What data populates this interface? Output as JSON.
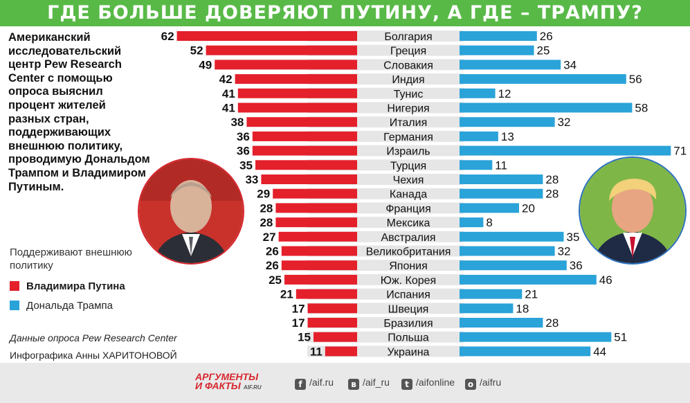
{
  "header": {
    "title": "ГДЕ БОЛЬШЕ ДОВЕРЯЮТ ПУТИНУ, А ГДЕ – ТРАМПУ?"
  },
  "intro": "Американский исследовательский центр Pew Research Center с помощью опроса выяснил процент жителей разных стран, поддерживающих внешнюю политику, проводимую Дональдом Трампом и Владимиром Путиным.",
  "legend": {
    "title": "Поддерживают внешнюю политику",
    "putin": "Владимира Путина",
    "trump": "Дональда Трампа"
  },
  "source": "Данные опроса Pew Research Center",
  "credit": "Инфографика Анны ХАРИТОНОВОЙ",
  "footer": {
    "logo_line1": "АРГУМЕНТЫ",
    "logo_line2": "И ФАКТЫ",
    "logo_domain": "AIF.RU",
    "links": [
      {
        "icon": "f",
        "label": "/aif.ru"
      },
      {
        "icon": "в",
        "label": "/aif_ru"
      },
      {
        "icon": "t",
        "label": "/aifonline"
      },
      {
        "icon": "о",
        "label": "/aifru"
      }
    ]
  },
  "colors": {
    "putin": "#e4202b",
    "trump": "#2aa3d9",
    "banner": "#58b947",
    "row_band": "#e6e6e6"
  },
  "chart_data": {
    "type": "bar",
    "categories": [
      "Болгария",
      "Греция",
      "Словакия",
      "Индия",
      "Тунис",
      "Нигерия",
      "Италия",
      "Германия",
      "Израиль",
      "Турция",
      "Чехия",
      "Канада",
      "Франция",
      "Мексика",
      "Австралия",
      "Великобритания",
      "Япония",
      "Юж. Корея",
      "Испания",
      "Швеция",
      "Бразилия",
      "Польша",
      "Украина"
    ],
    "series": [
      {
        "name": "Владимира Путина",
        "values": [
          62,
          52,
          49,
          42,
          41,
          41,
          38,
          36,
          36,
          35,
          33,
          29,
          28,
          28,
          27,
          26,
          26,
          25,
          21,
          17,
          17,
          15,
          11
        ]
      },
      {
        "name": "Дональда Трампа",
        "values": [
          26,
          25,
          34,
          56,
          12,
          58,
          32,
          13,
          71,
          11,
          28,
          28,
          20,
          8,
          35,
          32,
          36,
          46,
          21,
          18,
          28,
          51,
          44
        ]
      }
    ]
  }
}
